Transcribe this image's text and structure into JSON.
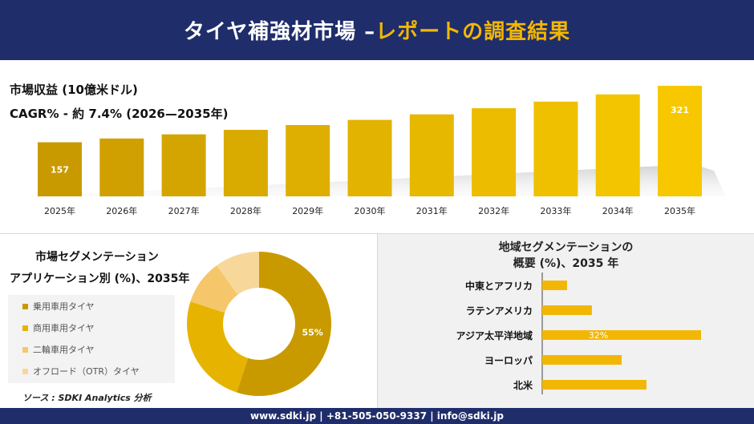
{
  "header": {
    "title_main": "タイヤ補強材市場 –",
    "title_accent": "レポートの調査結果"
  },
  "kpi": {
    "revenue_label": "市場収益 (10億米ドル)",
    "cagr_label": "CAGR% - 約 7.4% (2026—2035年)"
  },
  "chart_data": [
    {
      "type": "bar",
      "categories": [
        "2025年",
        "2026年",
        "2027年",
        "2028年",
        "2029年",
        "2030年",
        "2031年",
        "2032年",
        "2033年",
        "2034年",
        "2035年"
      ],
      "values": [
        157,
        168,
        180,
        193,
        207,
        222,
        238,
        256,
        275,
        296,
        321
      ],
      "data_labels": {
        "2025年": "157",
        "2035年": "321"
      },
      "colors": [
        "#c99a00",
        "#cfa000",
        "#d4a500",
        "#d9aa00",
        "#deaf00",
        "#e2b300",
        "#e7b800",
        "#ebbc00",
        "#efc000",
        "#f3c400",
        "#f7c800"
      ]
    },
    {
      "type": "pie",
      "title_line1": "市場セグメンテーション",
      "title_line2": "アプリケーション別 (%)、2035年",
      "labels": [
        "乗用車用タイヤ",
        "商用車用タイヤ",
        "二輪車用タイヤ",
        "オフロード（OTR）タイヤ"
      ],
      "values": [
        55,
        25,
        10,
        10
      ],
      "data_labels": [
        "55%",
        "",
        "",
        ""
      ],
      "colors": [
        "#c99a00",
        "#e6b400",
        "#f5c76a",
        "#f8d79a"
      ]
    },
    {
      "type": "bar",
      "orientation": "horizontal",
      "title_line1": "地域セグメンテーションの",
      "title_line2": "概要 (%)、2035 年",
      "categories": [
        "中東とアフリカ",
        "ラテンアメリカ",
        "アジア太平洋地域",
        "ヨーロッパ",
        "北米"
      ],
      "values": [
        5,
        10,
        32,
        16,
        21
      ],
      "data_labels": [
        "",
        "",
        "32%",
        "",
        ""
      ],
      "color": "#f2b705"
    }
  ],
  "source": "ソース : SDKI Analytics 分析",
  "footer": {
    "contact": "www.sdki.jp | +81-505-050-9337 | info@sdki.jp"
  }
}
